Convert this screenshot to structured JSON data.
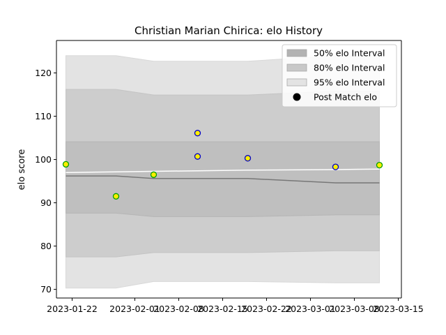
{
  "chart_data": {
    "type": "area",
    "title": "Christian Marian Chirica: elo History",
    "xlabel": "",
    "ylabel": "elo score",
    "xlim": [
      "2023-01-19T12:00",
      "2023-03-15T12:00"
    ],
    "ylim": [
      68,
      127.5
    ],
    "x_ticks": [
      "2023-01-22",
      "2023-02-01",
      "2023-02-08",
      "2023-02-15",
      "2023-02-22",
      "2023-03-01",
      "2023-03-08",
      "2023-03-15"
    ],
    "y_ticks": [
      70,
      80,
      90,
      100,
      110,
      120
    ],
    "legend_position": "top-right",
    "bands": {
      "x": [
        "2023-01-21",
        "2023-01-29",
        "2023-02-04",
        "2023-02-11",
        "2023-02-19",
        "2023-03-05",
        "2023-03-12"
      ],
      "median": [
        96.2,
        96.2,
        95.6,
        95.6,
        95.6,
        94.6,
        94.6
      ],
      "p95_low": [
        70.3,
        70.3,
        71.8,
        71.8,
        71.8,
        71.5,
        71.5
      ],
      "p95_high": [
        124.0,
        124.0,
        122.7,
        122.7,
        122.7,
        124.0,
        124.0
      ],
      "p80_low": [
        77.5,
        77.5,
        78.5,
        78.5,
        78.5,
        78.9,
        78.9
      ],
      "p80_high": [
        116.2,
        116.2,
        114.9,
        114.9,
        114.9,
        115.8,
        115.8
      ],
      "p50_low": [
        87.6,
        87.6,
        86.8,
        86.8,
        86.8,
        87.2,
        87.2
      ],
      "p50_high": [
        104.1,
        104.1,
        104.1,
        104.1,
        104.1,
        104.1,
        104.1
      ]
    },
    "points": [
      {
        "x": "2023-01-21",
        "y": 98.9,
        "color": "#00a000"
      },
      {
        "x": "2023-01-29",
        "y": 91.5,
        "color": "#00a000"
      },
      {
        "x": "2023-02-04",
        "y": 96.5,
        "color": "#00a000"
      },
      {
        "x": "2023-02-11",
        "y": 106.1,
        "color": "#0000c8"
      },
      {
        "x": "2023-02-11",
        "y": 100.7,
        "color": "#0000c8"
      },
      {
        "x": "2023-02-19",
        "y": 100.3,
        "color": "#0000c8"
      },
      {
        "x": "2023-03-05",
        "y": 98.3,
        "color": "#0000c8"
      },
      {
        "x": "2023-03-12",
        "y": 98.7,
        "color": "#00a000"
      }
    ],
    "legend": [
      {
        "label": "50% elo Interval",
        "kind": "patch",
        "color": "#b3b3b3"
      },
      {
        "label": "80% elo Interval",
        "kind": "patch",
        "color": "#c8c8c8"
      },
      {
        "label": "95% elo Interval",
        "kind": "patch",
        "color": "#e3e3e3"
      },
      {
        "label": "Post Match elo",
        "kind": "marker",
        "color": "#000000"
      }
    ]
  }
}
